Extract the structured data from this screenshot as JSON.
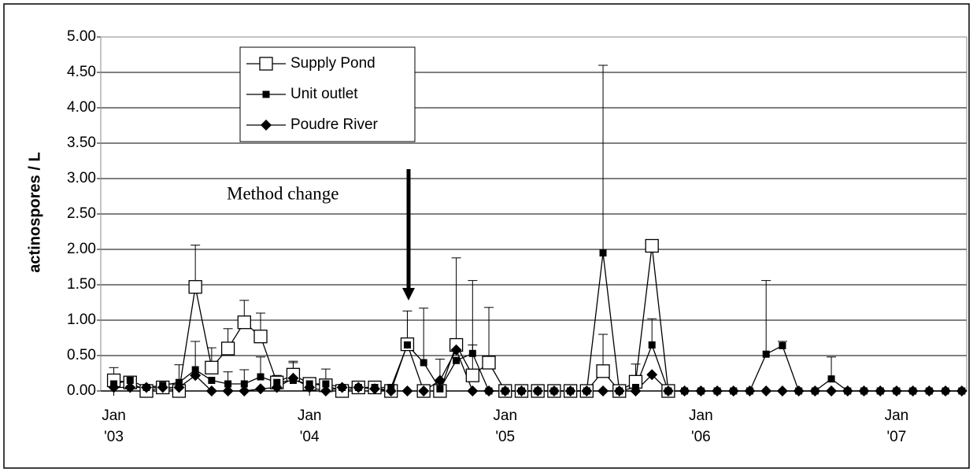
{
  "chart_data": {
    "type": "line",
    "y_label": "actinospores / L",
    "annotation": "Method change",
    "x": [
      0,
      1,
      2,
      3,
      4,
      5,
      6,
      7,
      8,
      9,
      10,
      11,
      12,
      13,
      14,
      15,
      16,
      17,
      18,
      19,
      20,
      21,
      22,
      23,
      24,
      25,
      26,
      27,
      28,
      29,
      30,
      31,
      32,
      33,
      34,
      35,
      36,
      37,
      38,
      39,
      40,
      41,
      42,
      43,
      44,
      45,
      46,
      47,
      48,
      49,
      50,
      51,
      52
    ],
    "xlim": [
      -0.8,
      52.3
    ],
    "xticks": [
      {
        "value": 0,
        "label": "Jan\n'03"
      },
      {
        "value": 12,
        "label": "Jan\n'04"
      },
      {
        "value": 24,
        "label": "Jan\n'05"
      },
      {
        "value": 36,
        "label": "Jan\n'06"
      },
      {
        "value": 48,
        "label": "Jan\n'07"
      }
    ],
    "ylim": [
      0,
      5
    ],
    "yticks": [
      {
        "value": 0,
        "label": "0.00"
      },
      {
        "value": 0.5,
        "label": "0.50"
      },
      {
        "value": 1,
        "label": "1.00"
      },
      {
        "value": 1.5,
        "label": "1.50"
      },
      {
        "value": 2,
        "label": "2.00"
      },
      {
        "value": 2.5,
        "label": "2.50"
      },
      {
        "value": 3,
        "label": "3.00"
      },
      {
        "value": 3.5,
        "label": "3.50"
      },
      {
        "value": 4,
        "label": "4.00"
      },
      {
        "value": 4.5,
        "label": "4.50"
      },
      {
        "value": 5,
        "label": "5.00"
      }
    ],
    "grid": true,
    "legend": "top-left",
    "series": [
      {
        "name": "Supply Pond",
        "color": "#000000",
        "marker": "square-open",
        "values": [
          0.15,
          0.12,
          0,
          0.05,
          0,
          1.47,
          0.33,
          0.6,
          0.97,
          0.77,
          0.12,
          0.23,
          0.1,
          0.08,
          0,
          0.05,
          0.05,
          0,
          0.66,
          0,
          0,
          0.65,
          0.22,
          0.4,
          0,
          0,
          0,
          0,
          0,
          0,
          0.28,
          0,
          0.13,
          2.05,
          0,
          null,
          null,
          null,
          null,
          null,
          null,
          null,
          null,
          null,
          null,
          null,
          null,
          null,
          null,
          null,
          null,
          null,
          null
        ],
        "errors": [
          0.18,
          null,
          null,
          null,
          0.37,
          0.59,
          0.28,
          0.28,
          0.31,
          0.33,
          0.1,
          0.17,
          null,
          0.23,
          null,
          null,
          null,
          null,
          0.47,
          null,
          null,
          1.23,
          0.43,
          0.78,
          null,
          null,
          null,
          null,
          null,
          null,
          0.52,
          null,
          0.25,
          null,
          null,
          null,
          null,
          null,
          null,
          null,
          null,
          null,
          null,
          null,
          null,
          null,
          null,
          null,
          null,
          null,
          null,
          null,
          null
        ]
      },
      {
        "name": "Unit outlet",
        "color": "#000000",
        "marker": "square",
        "values": [
          0.1,
          0.15,
          0.05,
          0.08,
          0.12,
          0.3,
          0.15,
          0.1,
          0.1,
          0.2,
          0.12,
          0.15,
          0.1,
          0.1,
          0.05,
          0.05,
          0.05,
          0.05,
          0.65,
          0.4,
          0.03,
          0.43,
          0.53,
          0,
          0,
          0,
          0,
          0,
          0,
          0,
          1.95,
          0,
          0.05,
          0.65,
          0,
          0,
          0,
          0,
          0,
          0,
          0.52,
          0.64,
          0,
          0,
          0.17,
          0,
          0,
          0,
          0,
          0,
          0,
          0,
          0
        ],
        "errors": [
          null,
          null,
          null,
          null,
          null,
          0.4,
          null,
          0.17,
          0.2,
          0.28,
          null,
          0.27,
          null,
          null,
          null,
          null,
          null,
          null,
          0.35,
          0.77,
          0.42,
          null,
          1.03,
          null,
          null,
          null,
          null,
          null,
          null,
          null,
          2.65,
          null,
          null,
          0.37,
          null,
          null,
          null,
          null,
          null,
          null,
          1.04,
          0.06,
          null,
          null,
          0.31,
          null,
          null,
          null,
          null,
          null,
          null,
          null,
          null
        ]
      },
      {
        "name": "Poudre River",
        "color": "#000000",
        "marker": "diamond",
        "values": [
          0.05,
          0.05,
          0.05,
          0.05,
          0.05,
          0.22,
          0,
          0,
          0,
          0.03,
          0.05,
          0.18,
          0.05,
          0,
          0.05,
          0.05,
          0.03,
          0,
          0,
          0,
          0.15,
          0.58,
          0,
          0,
          0,
          0,
          0,
          0,
          0,
          0,
          0,
          0,
          0,
          0.23,
          0,
          0,
          0,
          0,
          0,
          0,
          0,
          0,
          0,
          0,
          0,
          0,
          0,
          0,
          0,
          0,
          0,
          0,
          0
        ],
        "errors": [
          null,
          null,
          null,
          null,
          null,
          null,
          null,
          null,
          null,
          null,
          null,
          null,
          null,
          null,
          null,
          null,
          null,
          null,
          null,
          null,
          null,
          null,
          null,
          null,
          null,
          null,
          null,
          null,
          null,
          null,
          null,
          null,
          null,
          null,
          null,
          null,
          null,
          null,
          null,
          null,
          null,
          null,
          null,
          null,
          null,
          null,
          null,
          null,
          null,
          null,
          null,
          null,
          null
        ]
      }
    ]
  }
}
